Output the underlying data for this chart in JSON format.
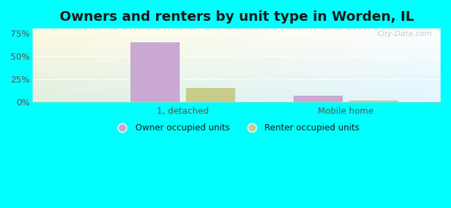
{
  "title": "Owners and renters by unit type in Worden, IL",
  "categories": [
    "1, detached",
    "Mobile home"
  ],
  "owner_values": [
    65.0,
    7.0
  ],
  "renter_values": [
    15.0,
    1.5
  ],
  "owner_color": "#c9a8d4",
  "renter_color": "#c8cc8a",
  "bar_width": 0.3,
  "ylim": [
    0,
    80
  ],
  "yticks": [
    0,
    25,
    50,
    75
  ],
  "yticklabels": [
    "0%",
    "25%",
    "50%",
    "75%"
  ],
  "outer_bg": "#00ffff",
  "watermark": "City-Data.com",
  "legend_owner": "Owner occupied units",
  "legend_renter": "Renter occupied units",
  "title_fontsize": 14,
  "axis_label_fontsize": 9,
  "legend_fontsize": 9,
  "grid_color": "#e8e8e8",
  "text_color": "#555555"
}
